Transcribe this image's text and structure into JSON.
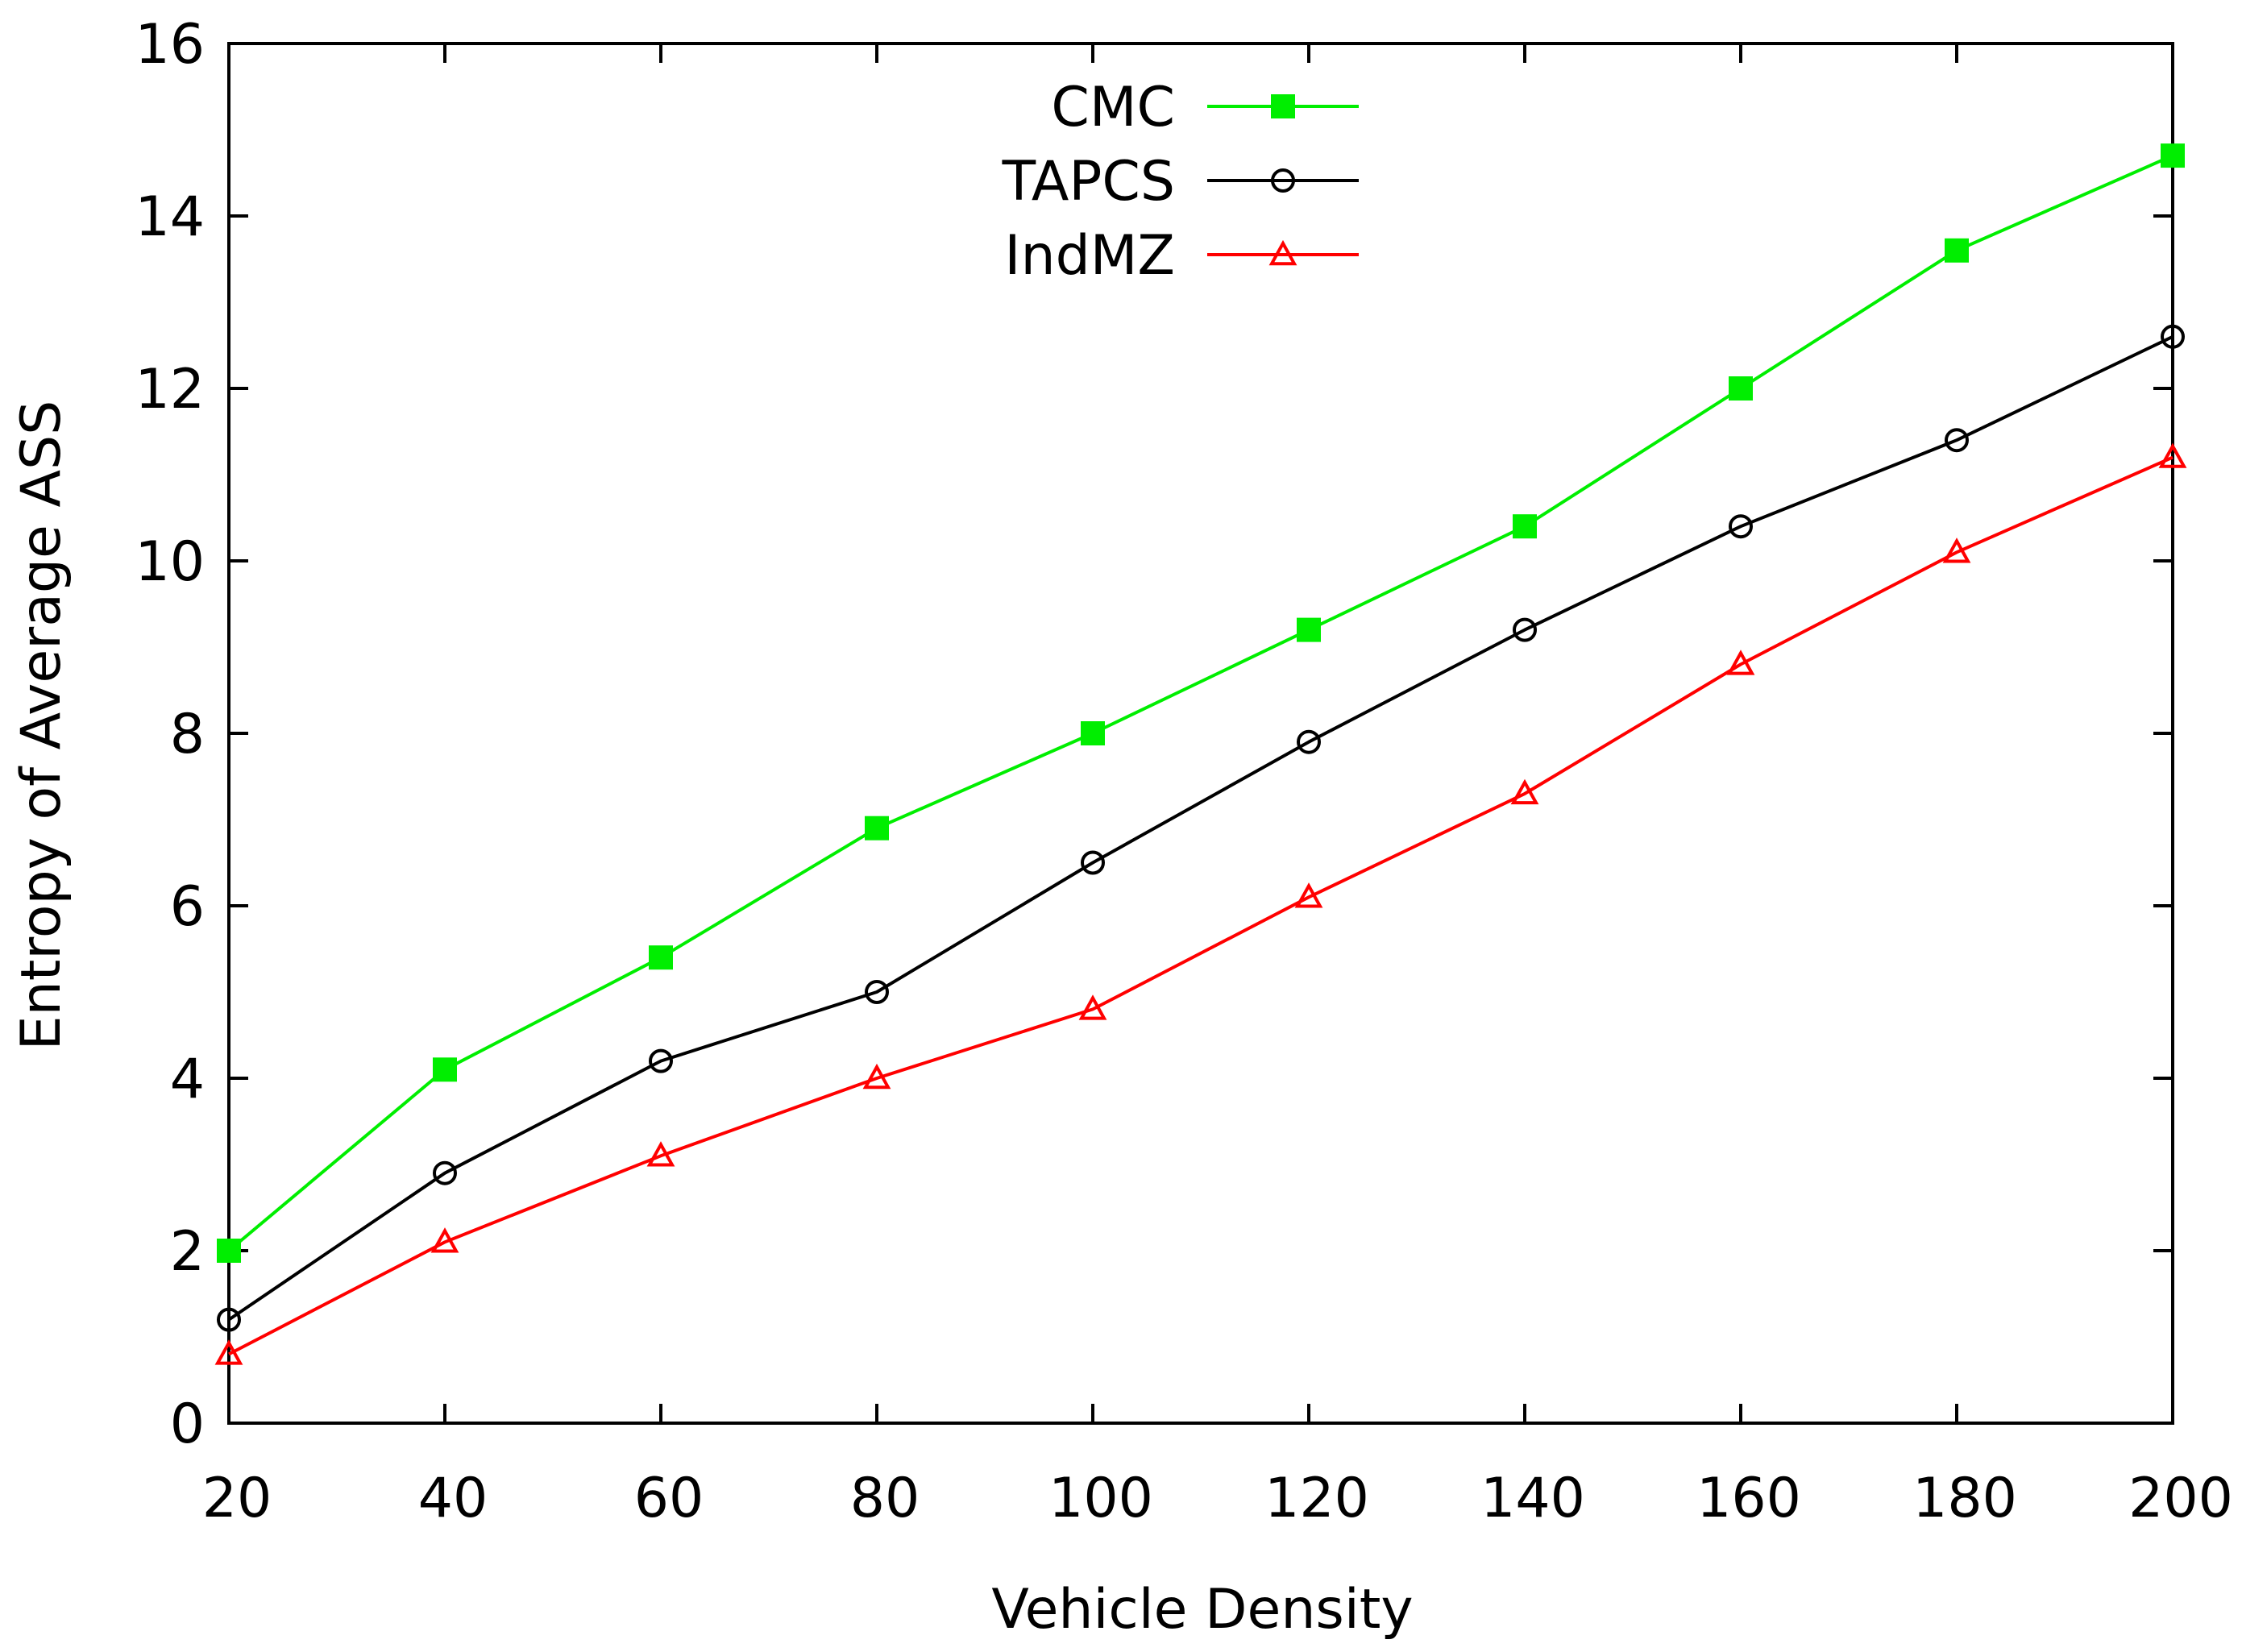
{
  "chart_data": {
    "type": "line",
    "title": "",
    "xlabel": "Vehicle Density",
    "ylabel": "Entropy of Average ASS",
    "x": [
      20,
      40,
      60,
      80,
      100,
      120,
      140,
      160,
      180,
      200
    ],
    "xlim": [
      20,
      200
    ],
    "ylim": [
      0,
      16
    ],
    "xticks": [
      20,
      40,
      60,
      80,
      100,
      120,
      140,
      160,
      180,
      200
    ],
    "yticks": [
      0,
      2,
      4,
      6,
      8,
      10,
      12,
      14,
      16
    ],
    "grid": false,
    "legend_position": "top-center",
    "series": [
      {
        "name": "CMC",
        "color": "#00ee00",
        "marker": "filled-square",
        "values": [
          2.0,
          4.1,
          5.4,
          6.9,
          8.0,
          9.2,
          10.4,
          12.0,
          13.6,
          14.7
        ]
      },
      {
        "name": "TAPCS",
        "color": "#000000",
        "marker": "open-circle",
        "values": [
          1.2,
          2.9,
          4.2,
          5.0,
          6.5,
          7.9,
          9.2,
          10.4,
          11.4,
          12.6
        ]
      },
      {
        "name": "IndMZ",
        "color": "#ff0000",
        "marker": "open-triangle",
        "values": [
          0.8,
          2.1,
          3.1,
          4.0,
          4.8,
          6.1,
          7.3,
          8.8,
          10.1,
          11.2
        ]
      }
    ]
  }
}
